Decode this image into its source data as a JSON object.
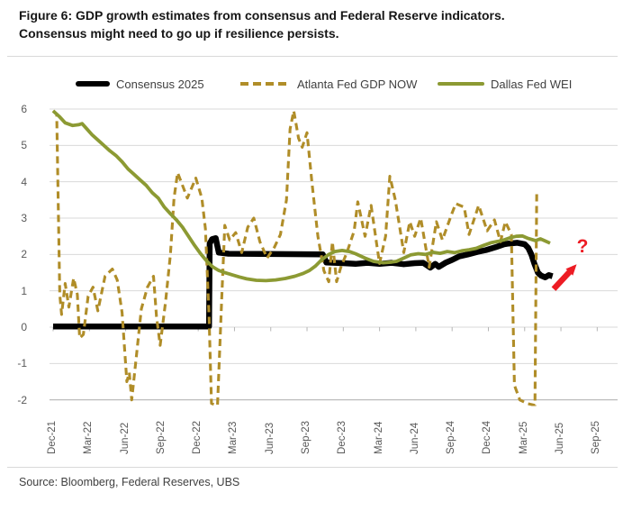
{
  "header": {
    "title_line1": "Figure 6: GDP growth estimates from consensus and Federal Reserve indicators.",
    "title_line2": "Consensus might need to go up if resilience persists."
  },
  "legend": [
    {
      "label": "Consensus 2025",
      "color": "#000000",
      "style": "solid-thick"
    },
    {
      "label": "Atlanta Fed GDP NOW",
      "color": "#b08d28",
      "style": "dashed"
    },
    {
      "label": "Dallas Fed WEI",
      "color": "#8c9a33",
      "style": "solid"
    }
  ],
  "source": "Source: Bloomberg, Federal Reserves, UBS",
  "chart_data": {
    "type": "line",
    "title": "GDP growth estimates from consensus and Federal Reserve indicators",
    "x_unit": "months since Dec-2021",
    "x_tick_labels": [
      "Dec-21",
      "Mar-22",
      "Jun-22",
      "Sep-22",
      "Dec-22",
      "Mar-23",
      "Jun-23",
      "Sep-23",
      "Dec-23",
      "Mar-24",
      "Jun-24",
      "Sep-24",
      "Dec-24",
      "Mar-25",
      "Jun-25",
      "Sep-25"
    ],
    "x_tick_months": [
      0,
      3,
      6,
      9,
      12,
      15,
      18,
      21,
      24,
      27,
      30,
      33,
      36,
      39,
      42,
      45
    ],
    "ylim": [
      -2,
      6
    ],
    "y_ticks": [
      -2,
      -1,
      0,
      1,
      2,
      3,
      4,
      5,
      6
    ],
    "grid": true,
    "legend_position": "top",
    "series": [
      {
        "name": "Consensus 2025",
        "color": "#000000",
        "stroke_width": 6.5,
        "dash": null,
        "points": [
          [
            0,
            0.02
          ],
          [
            12.9,
            0.02
          ],
          [
            12.95,
            2.3
          ],
          [
            13.15,
            2.42
          ],
          [
            13.45,
            2.45
          ],
          [
            13.7,
            2.05
          ],
          [
            14.5,
            2.02
          ],
          [
            22.3,
            2.0
          ],
          [
            22.45,
            1.9
          ],
          [
            22.6,
            1.78
          ],
          [
            24,
            1.76
          ],
          [
            25,
            1.74
          ],
          [
            26,
            1.77
          ],
          [
            27,
            1.74
          ],
          [
            28,
            1.77
          ],
          [
            29,
            1.73
          ],
          [
            29.9,
            1.76
          ],
          [
            30.6,
            1.77
          ],
          [
            31.2,
            1.64
          ],
          [
            31.6,
            1.74
          ],
          [
            31.9,
            1.66
          ],
          [
            32.5,
            1.78
          ],
          [
            33,
            1.85
          ],
          [
            33.6,
            1.95
          ],
          [
            34.3,
            2.0
          ],
          [
            35.1,
            2.07
          ],
          [
            35.8,
            2.12
          ],
          [
            36.6,
            2.2
          ],
          [
            37.3,
            2.28
          ],
          [
            37.7,
            2.3
          ],
          [
            38.4,
            2.32
          ],
          [
            39.0,
            2.28
          ],
          [
            39.3,
            2.18
          ],
          [
            39.55,
            2.0
          ],
          [
            39.8,
            1.75
          ],
          [
            40.1,
            1.5
          ],
          [
            40.35,
            1.42
          ],
          [
            40.7,
            1.37
          ],
          [
            41.0,
            1.43
          ],
          [
            41.3,
            1.4
          ]
        ]
      },
      {
        "name": "Atlanta Fed GDP NOW",
        "color": "#b08d28",
        "stroke_width": 3.1,
        "dash": "8 5",
        "points": [
          [
            0,
            5.95
          ],
          [
            0.3,
            5.85
          ],
          [
            0.55,
            0.9
          ],
          [
            0.7,
            0.35
          ],
          [
            1.0,
            1.2
          ],
          [
            1.3,
            0.55
          ],
          [
            1.7,
            1.35
          ],
          [
            2.0,
            0.9
          ],
          [
            2.2,
            -0.3
          ],
          [
            2.5,
            -0.2
          ],
          [
            2.9,
            0.85
          ],
          [
            3.3,
            1.1
          ],
          [
            3.7,
            0.45
          ],
          [
            4.3,
            1.4
          ],
          [
            4.9,
            1.6
          ],
          [
            5.3,
            1.3
          ],
          [
            5.7,
            0.4
          ],
          [
            6.1,
            -1.5
          ],
          [
            6.3,
            -1.25
          ],
          [
            6.5,
            -2.0
          ],
          [
            6.9,
            -0.75
          ],
          [
            7.3,
            0.5
          ],
          [
            7.8,
            1.1
          ],
          [
            8.3,
            1.4
          ],
          [
            8.55,
            0.3
          ],
          [
            8.85,
            -0.5
          ],
          [
            9.3,
            0.7
          ],
          [
            9.7,
            2.0
          ],
          [
            10.0,
            3.55
          ],
          [
            10.3,
            4.25
          ],
          [
            11.1,
            3.55
          ],
          [
            11.8,
            4.1
          ],
          [
            12.3,
            3.55
          ],
          [
            12.6,
            2.7
          ],
          [
            12.9,
            0.3
          ],
          [
            13.1,
            -2.1
          ],
          [
            13.6,
            -2.15
          ],
          [
            13.95,
            0.8
          ],
          [
            14.2,
            2.8
          ],
          [
            14.6,
            2.4
          ],
          [
            15.1,
            2.6
          ],
          [
            15.6,
            2.05
          ],
          [
            16.1,
            2.75
          ],
          [
            16.6,
            3.0
          ],
          [
            17.1,
            2.35
          ],
          [
            17.7,
            1.9
          ],
          [
            18.3,
            2.2
          ],
          [
            18.8,
            2.55
          ],
          [
            19.3,
            3.5
          ],
          [
            19.6,
            5.45
          ],
          [
            19.9,
            5.95
          ],
          [
            20.3,
            5.2
          ],
          [
            20.6,
            4.95
          ],
          [
            21.0,
            5.35
          ],
          [
            21.4,
            4.0
          ],
          [
            21.9,
            2.5
          ],
          [
            22.4,
            1.55
          ],
          [
            22.8,
            1.25
          ],
          [
            23.1,
            2.35
          ],
          [
            23.45,
            1.25
          ],
          [
            23.8,
            1.65
          ],
          [
            24.3,
            2.05
          ],
          [
            24.9,
            2.65
          ],
          [
            25.2,
            3.45
          ],
          [
            25.8,
            2.5
          ],
          [
            26.3,
            3.35
          ],
          [
            26.75,
            2.3
          ],
          [
            27.0,
            1.75
          ],
          [
            27.5,
            2.5
          ],
          [
            27.85,
            4.15
          ],
          [
            28.3,
            3.5
          ],
          [
            29.0,
            2.05
          ],
          [
            29.5,
            2.9
          ],
          [
            29.9,
            2.5
          ],
          [
            30.4,
            3.0
          ],
          [
            31.1,
            1.65
          ],
          [
            31.7,
            2.9
          ],
          [
            32.2,
            2.4
          ],
          [
            32.9,
            3.05
          ],
          [
            33.3,
            3.4
          ],
          [
            34.0,
            3.3
          ],
          [
            34.4,
            2.55
          ],
          [
            35.2,
            3.35
          ],
          [
            35.9,
            2.65
          ],
          [
            36.5,
            2.95
          ],
          [
            37.0,
            2.35
          ],
          [
            37.4,
            2.9
          ],
          [
            37.9,
            2.55
          ],
          [
            38.15,
            -1.6
          ],
          [
            38.6,
            -2.0
          ],
          [
            39.2,
            -2.1
          ],
          [
            39.85,
            -2.15
          ],
          [
            40.0,
            3.78
          ]
        ]
      },
      {
        "name": "Dallas Fed WEI",
        "color": "#8c9a33",
        "stroke_width": 3.8,
        "dash": null,
        "points": [
          [
            0,
            5.95
          ],
          [
            0.5,
            5.8
          ],
          [
            1.0,
            5.62
          ],
          [
            1.6,
            5.55
          ],
          [
            2.1,
            5.57
          ],
          [
            2.4,
            5.6
          ],
          [
            2.8,
            5.45
          ],
          [
            3.2,
            5.3
          ],
          [
            3.7,
            5.15
          ],
          [
            4.2,
            5.0
          ],
          [
            4.7,
            4.85
          ],
          [
            5.2,
            4.72
          ],
          [
            5.7,
            4.55
          ],
          [
            6.2,
            4.35
          ],
          [
            6.7,
            4.2
          ],
          [
            7.2,
            4.05
          ],
          [
            7.7,
            3.9
          ],
          [
            8.2,
            3.7
          ],
          [
            8.7,
            3.55
          ],
          [
            9.2,
            3.3
          ],
          [
            9.7,
            3.12
          ],
          [
            10.2,
            2.95
          ],
          [
            10.7,
            2.75
          ],
          [
            11.2,
            2.5
          ],
          [
            11.7,
            2.25
          ],
          [
            12.2,
            2.02
          ],
          [
            12.7,
            1.82
          ],
          [
            13.2,
            1.66
          ],
          [
            13.7,
            1.56
          ],
          [
            14.2,
            1.5
          ],
          [
            14.8,
            1.44
          ],
          [
            15.4,
            1.38
          ],
          [
            16.0,
            1.33
          ],
          [
            16.8,
            1.29
          ],
          [
            17.6,
            1.28
          ],
          [
            18.4,
            1.3
          ],
          [
            19.2,
            1.34
          ],
          [
            20.0,
            1.4
          ],
          [
            20.7,
            1.48
          ],
          [
            21.2,
            1.56
          ],
          [
            21.7,
            1.68
          ],
          [
            22.2,
            1.85
          ],
          [
            22.8,
            2.0
          ],
          [
            23.3,
            2.08
          ],
          [
            23.9,
            2.11
          ],
          [
            24.5,
            2.08
          ],
          [
            25.0,
            2.02
          ],
          [
            25.8,
            1.9
          ],
          [
            26.5,
            1.81
          ],
          [
            27.3,
            1.77
          ],
          [
            28.0,
            1.79
          ],
          [
            28.4,
            1.81
          ],
          [
            29.0,
            1.9
          ],
          [
            29.6,
            1.99
          ],
          [
            30.2,
            2.02
          ],
          [
            30.8,
            2.0
          ],
          [
            31.4,
            2.06
          ],
          [
            32.0,
            2.03
          ],
          [
            32.6,
            2.08
          ],
          [
            33.2,
            2.05
          ],
          [
            33.8,
            2.1
          ],
          [
            34.4,
            2.13
          ],
          [
            35.0,
            2.17
          ],
          [
            35.6,
            2.25
          ],
          [
            36.2,
            2.32
          ],
          [
            36.8,
            2.36
          ],
          [
            37.3,
            2.4
          ],
          [
            37.8,
            2.46
          ],
          [
            38.3,
            2.5
          ],
          [
            38.8,
            2.51
          ],
          [
            39.3,
            2.44
          ],
          [
            39.9,
            2.38
          ],
          [
            40.3,
            2.43
          ],
          [
            40.7,
            2.37
          ],
          [
            41.1,
            2.31
          ]
        ]
      }
    ],
    "annotations": {
      "arrow": {
        "from_xy": [
          41.4,
          1.05
        ],
        "to_xy": [
          43.3,
          1.73
        ],
        "color": "#ed1c24"
      },
      "question": {
        "xy": [
          43.9,
          2.18
        ],
        "text": "?",
        "color": "#ed1c24"
      }
    }
  }
}
